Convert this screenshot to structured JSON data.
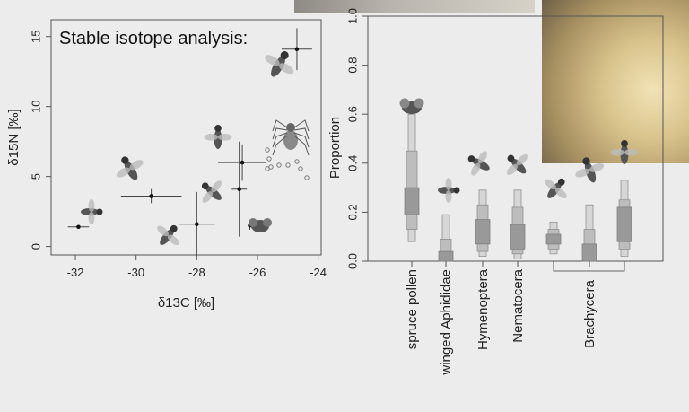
{
  "slide": {
    "title": "Stable isotope analysis:"
  },
  "chart_data": [
    {
      "type": "scatter",
      "title": "",
      "xlabel": "δ13C  [‰]",
      "ylabel": "δ15N  [‰]",
      "xlim": [
        -32.8,
        -23.9
      ],
      "ylim": [
        -0.6,
        16.2
      ],
      "x_ticks": [
        -32,
        -30,
        -28,
        -26,
        -24
      ],
      "x_tick_labels": [
        "-32",
        "-30",
        "-28",
        "-26",
        "-24"
      ],
      "y_ticks": [
        0,
        5,
        10,
        15
      ],
      "y_tick_labels": [
        "0",
        "5",
        "10",
        "15"
      ],
      "grid": false,
      "points": [
        {
          "x": -31.9,
          "y": 1.4,
          "xerr": 0.35,
          "yerr": 0.0,
          "group": "spruce pollen"
        },
        {
          "x": -29.5,
          "y": 3.6,
          "xerr": 1.0,
          "yerr": 0.5,
          "group": "winged Aphididae"
        },
        {
          "x": -28.0,
          "y": 1.6,
          "xerr": 0.6,
          "yerr": 2.3,
          "group": "Hymenoptera"
        },
        {
          "x": -26.6,
          "y": 4.1,
          "xerr": 0.25,
          "yerr": 3.4,
          "group": "Nematocera"
        },
        {
          "x": -26.5,
          "y": 6.0,
          "xerr": 0.8,
          "yerr": 1.3,
          "group": "Brachycera"
        },
        {
          "x": -26.25,
          "y": 1.5,
          "xerr": 0.0,
          "yerr": 0.3,
          "group": "Brachycera"
        },
        {
          "x": -24.7,
          "y": 14.1,
          "xerr": 0.5,
          "yerr": 1.5,
          "group": "spider"
        }
      ],
      "egg_icons": 9
    },
    {
      "type": "box",
      "title": "",
      "xlabel": "",
      "ylabel": "Proportion",
      "ylim": [
        0.0,
        1.0
      ],
      "y_ticks": [
        0.0,
        0.2,
        0.4,
        0.6,
        0.8,
        1.0
      ],
      "y_tick_labels": [
        "0.0",
        "0.2",
        "0.4",
        "0.6",
        "0.8",
        "1.0"
      ],
      "categories": [
        "spruce pollen",
        "winged Aphididae",
        "Hymenoptera",
        "Nematocera",
        "",
        "",
        ""
      ],
      "group_label": "Brachycera",
      "series": [
        {
          "lo95": 0.08,
          "lo75": 0.13,
          "lo50": 0.19,
          "hi50": 0.3,
          "hi75": 0.45,
          "hi95": 0.6
        },
        {
          "lo95": 0.0,
          "lo75": 0.0,
          "lo50": 0.0,
          "hi50": 0.04,
          "hi75": 0.09,
          "hi95": 0.19
        },
        {
          "lo95": 0.02,
          "lo75": 0.04,
          "lo50": 0.07,
          "hi50": 0.17,
          "hi75": 0.23,
          "hi95": 0.29
        },
        {
          "lo95": 0.01,
          "lo75": 0.03,
          "lo50": 0.05,
          "hi50": 0.15,
          "hi75": 0.22,
          "hi95": 0.29
        },
        {
          "lo95": 0.03,
          "lo75": 0.05,
          "lo50": 0.07,
          "hi50": 0.11,
          "hi75": 0.13,
          "hi95": 0.16
        },
        {
          "lo95": 0.0,
          "lo75": 0.0,
          "lo50": 0.0,
          "hi50": 0.07,
          "hi75": 0.13,
          "hi95": 0.23
        },
        {
          "lo95": 0.02,
          "lo75": 0.05,
          "lo50": 0.08,
          "hi50": 0.22,
          "hi75": 0.25,
          "hi95": 0.33
        }
      ]
    }
  ],
  "colors": {
    "box_light": "#d6d6d6",
    "box_mid": "#bdbdbd",
    "box_dark": "#999999",
    "axis": "#555555"
  }
}
